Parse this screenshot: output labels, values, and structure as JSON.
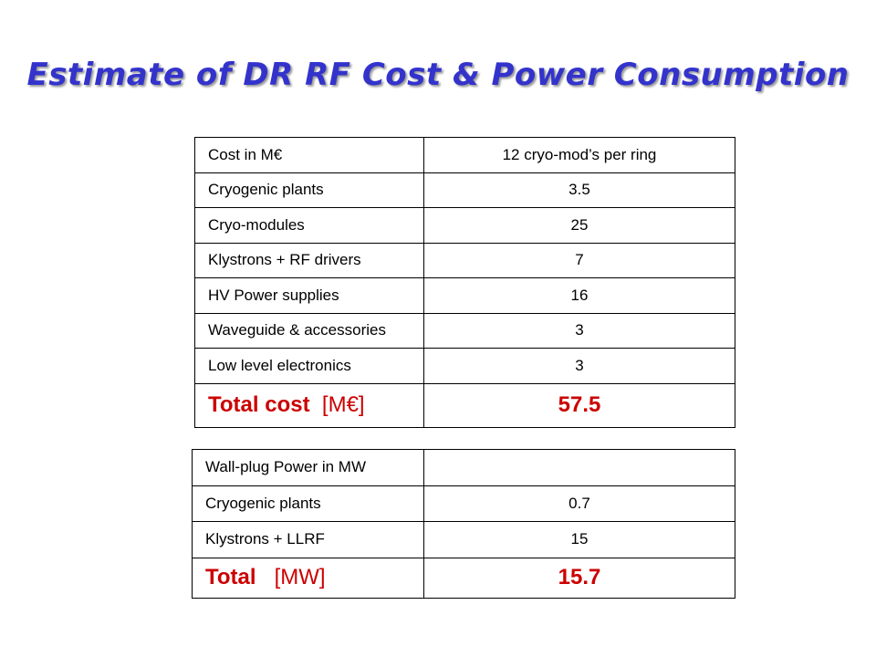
{
  "title": "Estimate of DR RF Cost & Power Consumption",
  "cost_table": {
    "header": [
      "Cost in M€",
      "12 cryo-mod’s per ring"
    ],
    "rows": [
      [
        "Cryogenic plants",
        "3.5"
      ],
      [
        "Cryo-modules",
        "25"
      ],
      [
        "Klystrons + RF drivers",
        "7"
      ],
      [
        "HV Power supplies",
        "16"
      ],
      [
        "Waveguide & accessories",
        "3"
      ],
      [
        "Low level electronics",
        "3"
      ]
    ],
    "total_label": "Total cost",
    "total_unit": "[M€]",
    "total_value": "57.5"
  },
  "power_table": {
    "header": [
      "Wall-plug Power in MW",
      ""
    ],
    "rows": [
      [
        "Cryogenic plants",
        "0.7"
      ],
      [
        "Klystrons + LLRF",
        "15"
      ]
    ],
    "total_label": "Total",
    "total_unit": "[MW]",
    "total_value": "15.7"
  },
  "colors": {
    "title": "#3333cc",
    "total_text": "#cc0000",
    "border": "#000000"
  }
}
